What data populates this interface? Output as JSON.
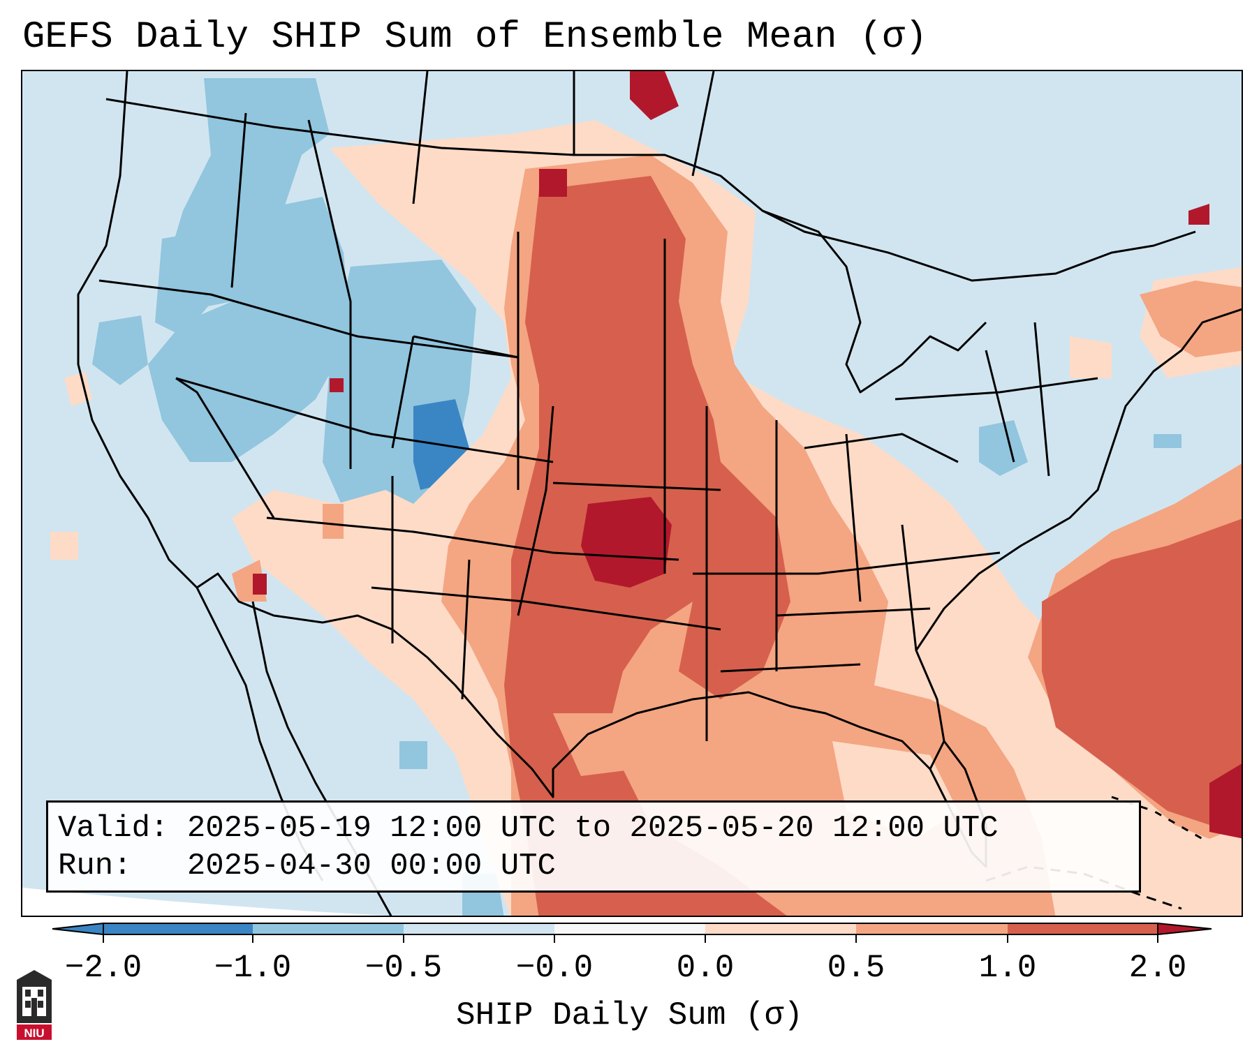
{
  "title": "GEFS Daily SHIP Sum of Ensemble Mean (σ)",
  "info": {
    "valid_line": "Valid: 2025-05-19 12:00 UTC to 2025-05-20 12:00 UTC",
    "run_line": "Run:   2025-04-30 00:00 UTC"
  },
  "colorbar": {
    "label": "SHIP Daily Sum (σ)",
    "ticks": [
      "−2.0",
      "−1.0",
      "−0.5",
      "−0.0",
      "0.0",
      "0.5",
      "1.0",
      "2.0"
    ],
    "colors": [
      "#3a86c4",
      "#92c5de",
      "#d1e5f0",
      "#f7f7f7",
      "#fddbc7",
      "#f4a582",
      "#d6604d",
      "#b2182b"
    ]
  },
  "map": {
    "background_color": "#d1e5f0",
    "field_colors": {
      "neg_strong": "#3a86c4",
      "neg": "#92c5de",
      "neg_weak": "#d1e5f0",
      "pos_weak": "#fddbc7",
      "pos": "#f4a582",
      "pos_strong": "#d6604d",
      "pos_max": "#b2182b"
    }
  },
  "logo": {
    "text": "NIU",
    "name": "niu-logo-icon"
  }
}
